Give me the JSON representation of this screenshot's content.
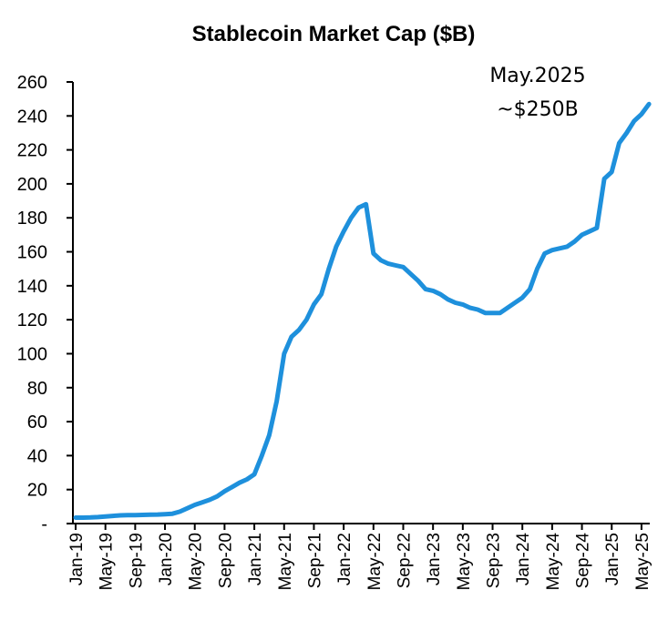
{
  "chart_data": {
    "type": "line",
    "title": "Stablecoin Market Cap ($B)",
    "xlabel": "",
    "ylabel": "",
    "ylim": [
      0,
      260
    ],
    "yticks": [
      0,
      20,
      40,
      60,
      80,
      100,
      120,
      140,
      160,
      180,
      200,
      220,
      240,
      260
    ],
    "ytick_labels": [
      "-",
      "20",
      "40",
      "60",
      "80",
      "100",
      "120",
      "140",
      "160",
      "180",
      "200",
      "220",
      "240",
      "260"
    ],
    "xtick_labels": [
      "Jan-19",
      "May-19",
      "Sep-19",
      "Jan-20",
      "May-20",
      "Sep-20",
      "Jan-21",
      "May-21",
      "Sep-21",
      "Jan-22",
      "May-22",
      "Sep-22",
      "Jan-23",
      "May-23",
      "Sep-23",
      "Jan-24",
      "May-24",
      "Sep-24",
      "Jan-25",
      "May-25"
    ],
    "grid": false,
    "legend": "none",
    "annotation": {
      "lines": [
        "May.2025",
        "~$250B"
      ],
      "placement": "top-right"
    },
    "line_color": "#1e90dc",
    "series": [
      {
        "name": "Stablecoin Market Cap",
        "x_start": "Jan-19",
        "x_step": "month",
        "values": [
          3.5,
          3.5,
          3.6,
          3.8,
          4.2,
          4.5,
          4.8,
          5.0,
          5.0,
          5.1,
          5.2,
          5.3,
          5.5,
          5.8,
          7.0,
          9.0,
          11.0,
          12.5,
          14.0,
          16.0,
          19.0,
          21.5,
          24.0,
          26.0,
          29.0,
          40.0,
          52.0,
          72.0,
          100.0,
          110.0,
          114.0,
          120.0,
          129.0,
          135.0,
          150.0,
          163.0,
          172.0,
          180.0,
          186.0,
          188.0,
          159.0,
          155.0,
          153.0,
          152.0,
          151.0,
          147.0,
          143.0,
          138.0,
          137.0,
          135.0,
          132.0,
          130.0,
          129.0,
          127.0,
          126.0,
          124.0,
          124.0,
          124.0,
          127.0,
          130.0,
          133.0,
          138.0,
          150.0,
          159.0,
          161.0,
          162.0,
          163.0,
          166.0,
          170.0,
          172.0,
          174.0,
          203.0,
          207.0,
          224.0,
          230.0,
          237.0,
          241.0,
          247.0
        ]
      }
    ]
  }
}
